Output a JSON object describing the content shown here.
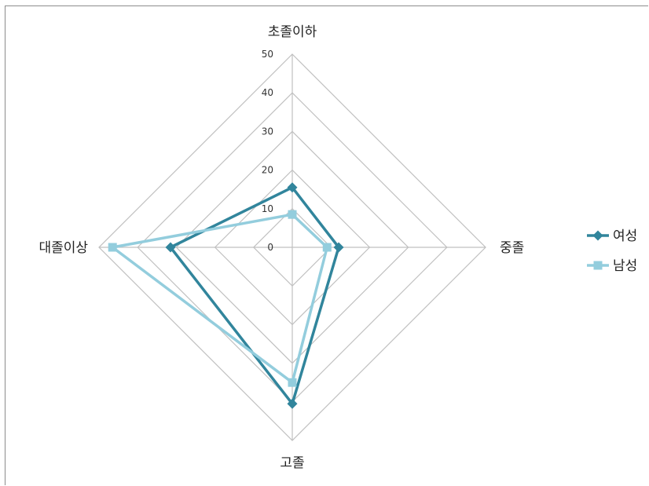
{
  "chart_data": {
    "type": "radar",
    "categories": [
      "초졸이하",
      "중졸",
      "고졸",
      "대졸이상"
    ],
    "series": [
      {
        "name": "여성",
        "values": [
          15.5,
          12,
          40.5,
          31.5
        ],
        "color": "#31859c",
        "marker": "diamond"
      },
      {
        "name": "남성",
        "values": [
          8.5,
          9,
          35,
          46.5
        ],
        "color": "#93cddd",
        "marker": "square"
      }
    ],
    "rlim": [
      0,
      50
    ],
    "ticks": [
      "0",
      "10",
      "20",
      "30",
      "40",
      "50"
    ],
    "grid": true,
    "legend": "right"
  }
}
